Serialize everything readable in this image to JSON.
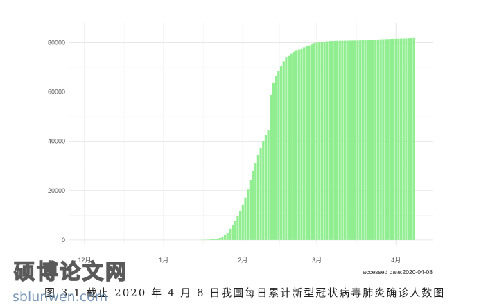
{
  "chart_data": {
    "type": "bar",
    "title": "",
    "xlabel": "",
    "ylabel": "",
    "color": "#90ee90",
    "grid": true,
    "x_range": [
      "2019-12-01",
      "2020-04-08"
    ],
    "ylim": [
      -2000,
      88000
    ],
    "y_ticks": [
      {
        "value": 0,
        "label": "0"
      },
      {
        "value": 20000,
        "label": "20000"
      },
      {
        "value": 40000,
        "label": "40000"
      },
      {
        "value": 60000,
        "label": "60000"
      },
      {
        "value": 80000,
        "label": "80000"
      }
    ],
    "x_ticks": [
      {
        "date": "2019-12-01",
        "label": "12月"
      },
      {
        "date": "2020-01-01",
        "label": "1月"
      },
      {
        "date": "2020-02-01",
        "label": "2月"
      },
      {
        "date": "2020-03-01",
        "label": "3月"
      },
      {
        "date": "2020-04-01",
        "label": "4月"
      }
    ],
    "note": "accessed date:2020-04-08",
    "bars": [
      {
        "date": "2020-01-16",
        "value": 45
      },
      {
        "date": "2020-01-17",
        "value": 62
      },
      {
        "date": "2020-01-18",
        "value": 121
      },
      {
        "date": "2020-01-19",
        "value": 198
      },
      {
        "date": "2020-01-20",
        "value": 291
      },
      {
        "date": "2020-01-21",
        "value": 440
      },
      {
        "date": "2020-01-22",
        "value": 571
      },
      {
        "date": "2020-01-23",
        "value": 830
      },
      {
        "date": "2020-01-24",
        "value": 1287
      },
      {
        "date": "2020-01-25",
        "value": 1975
      },
      {
        "date": "2020-01-26",
        "value": 2744
      },
      {
        "date": "2020-01-27",
        "value": 4515
      },
      {
        "date": "2020-01-28",
        "value": 5974
      },
      {
        "date": "2020-01-29",
        "value": 7711
      },
      {
        "date": "2020-01-30",
        "value": 9692
      },
      {
        "date": "2020-01-31",
        "value": 11791
      },
      {
        "date": "2020-02-01",
        "value": 14380
      },
      {
        "date": "2020-02-02",
        "value": 17205
      },
      {
        "date": "2020-02-03",
        "value": 20438
      },
      {
        "date": "2020-02-04",
        "value": 24324
      },
      {
        "date": "2020-02-05",
        "value": 28018
      },
      {
        "date": "2020-02-06",
        "value": 31161
      },
      {
        "date": "2020-02-07",
        "value": 34546
      },
      {
        "date": "2020-02-08",
        "value": 37198
      },
      {
        "date": "2020-02-09",
        "value": 40171
      },
      {
        "date": "2020-02-10",
        "value": 42638
      },
      {
        "date": "2020-02-11",
        "value": 44653
      },
      {
        "date": "2020-02-12",
        "value": 58761
      },
      {
        "date": "2020-02-13",
        "value": 63851
      },
      {
        "date": "2020-02-14",
        "value": 66492
      },
      {
        "date": "2020-02-15",
        "value": 68500
      },
      {
        "date": "2020-02-16",
        "value": 70548
      },
      {
        "date": "2020-02-17",
        "value": 72436
      },
      {
        "date": "2020-02-18",
        "value": 74185
      },
      {
        "date": "2020-02-19",
        "value": 74576
      },
      {
        "date": "2020-02-20",
        "value": 75465
      },
      {
        "date": "2020-02-21",
        "value": 76288
      },
      {
        "date": "2020-02-22",
        "value": 76936
      },
      {
        "date": "2020-02-23",
        "value": 77150
      },
      {
        "date": "2020-02-24",
        "value": 77658
      },
      {
        "date": "2020-02-25",
        "value": 78064
      },
      {
        "date": "2020-02-26",
        "value": 78497
      },
      {
        "date": "2020-02-27",
        "value": 78824
      },
      {
        "date": "2020-02-28",
        "value": 79251
      },
      {
        "date": "2020-02-29",
        "value": 79824
      },
      {
        "date": "2020-03-01",
        "value": 80026
      },
      {
        "date": "2020-03-02",
        "value": 80151
      },
      {
        "date": "2020-03-03",
        "value": 80270
      },
      {
        "date": "2020-03-04",
        "value": 80409
      },
      {
        "date": "2020-03-05",
        "value": 80552
      },
      {
        "date": "2020-03-06",
        "value": 80651
      },
      {
        "date": "2020-03-07",
        "value": 80695
      },
      {
        "date": "2020-03-08",
        "value": 80735
      },
      {
        "date": "2020-03-09",
        "value": 80754
      },
      {
        "date": "2020-03-10",
        "value": 80778
      },
      {
        "date": "2020-03-11",
        "value": 80793
      },
      {
        "date": "2020-03-12",
        "value": 80813
      },
      {
        "date": "2020-03-13",
        "value": 80824
      },
      {
        "date": "2020-03-14",
        "value": 80844
      },
      {
        "date": "2020-03-15",
        "value": 80860
      },
      {
        "date": "2020-03-16",
        "value": 80881
      },
      {
        "date": "2020-03-17",
        "value": 80894
      },
      {
        "date": "2020-03-18",
        "value": 80928
      },
      {
        "date": "2020-03-19",
        "value": 80967
      },
      {
        "date": "2020-03-20",
        "value": 81008
      },
      {
        "date": "2020-03-21",
        "value": 81054
      },
      {
        "date": "2020-03-22",
        "value": 81093
      },
      {
        "date": "2020-03-23",
        "value": 81171
      },
      {
        "date": "2020-03-24",
        "value": 81218
      },
      {
        "date": "2020-03-25",
        "value": 81285
      },
      {
        "date": "2020-03-26",
        "value": 81340
      },
      {
        "date": "2020-03-27",
        "value": 81394
      },
      {
        "date": "2020-03-28",
        "value": 81439
      },
      {
        "date": "2020-03-29",
        "value": 81470
      },
      {
        "date": "2020-03-30",
        "value": 81518
      },
      {
        "date": "2020-03-31",
        "value": 81554
      },
      {
        "date": "2020-04-01",
        "value": 81589
      },
      {
        "date": "2020-04-02",
        "value": 81620
      },
      {
        "date": "2020-04-03",
        "value": 81639
      },
      {
        "date": "2020-04-04",
        "value": 81669
      },
      {
        "date": "2020-04-05",
        "value": 81708
      },
      {
        "date": "2020-04-06",
        "value": 81740
      },
      {
        "date": "2020-04-07",
        "value": 81802
      },
      {
        "date": "2020-04-08",
        "value": 81865
      }
    ]
  },
  "caption": "图 3.1  截止 2020 年 4 月 8 日我国每日累计新型冠状病毒肺炎确诊人数图",
  "watermark": {
    "text": "硕博论文网",
    "url": "sblunwen.com"
  }
}
